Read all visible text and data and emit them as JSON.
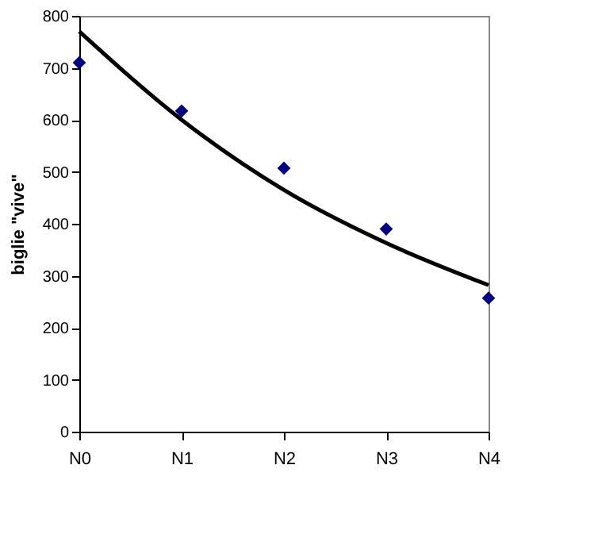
{
  "chart_data": {
    "type": "scatter",
    "ylabel": "biglie \"vive\"",
    "categories": [
      "N0",
      "N1",
      "N2",
      "N3",
      "N4"
    ],
    "series": [
      {
        "color": "#000080",
        "marker": "diamond",
        "values": [
          710,
          617,
          507,
          390,
          257
        ]
      },
      {
        "type": "line",
        "color": "#000000",
        "line_style": "solid",
        "values": [
          770,
          600,
          465,
          363,
          282
        ]
      }
    ],
    "ylim": [
      0,
      800
    ],
    "yticks": [
      0,
      100,
      200,
      300,
      400,
      500,
      600,
      700,
      800
    ],
    "grid": false
  }
}
